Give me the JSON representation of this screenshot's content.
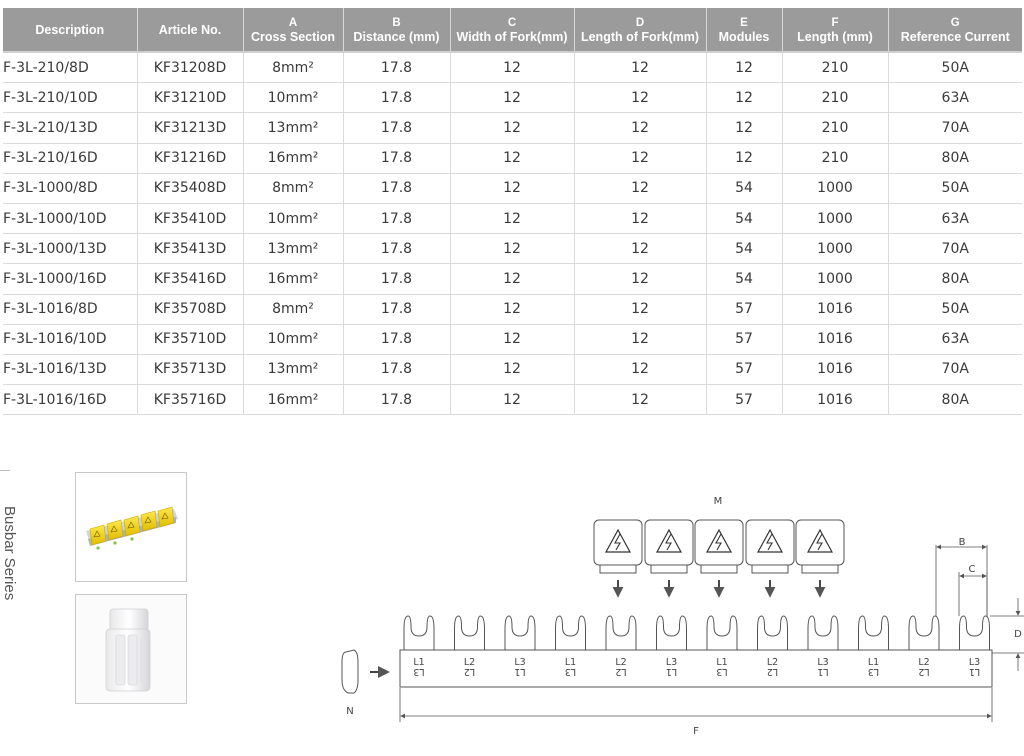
{
  "table": {
    "headers": [
      {
        "letter": "",
        "label": "Description"
      },
      {
        "letter": "",
        "label": "Article No."
      },
      {
        "letter": "A",
        "label": "Cross Section"
      },
      {
        "letter": "B",
        "label": "Distance (mm)"
      },
      {
        "letter": "C",
        "label": "Width of Fork(mm)"
      },
      {
        "letter": "D",
        "label": "Length of Fork(mm)"
      },
      {
        "letter": "E",
        "label": "Modules"
      },
      {
        "letter": "F",
        "label": "Length (mm)"
      },
      {
        "letter": "G",
        "label": "Reference Current"
      }
    ],
    "rows": [
      [
        "F-3L-210/8D",
        "KF31208D",
        "8mm²",
        "17.8",
        "12",
        "12",
        "12",
        "210",
        "50A"
      ],
      [
        "F-3L-210/10D",
        "KF31210D",
        "10mm²",
        "17.8",
        "12",
        "12",
        "12",
        "210",
        "63A"
      ],
      [
        "F-3L-210/13D",
        "KF31213D",
        "13mm²",
        "17.8",
        "12",
        "12",
        "12",
        "210",
        "70A"
      ],
      [
        "F-3L-210/16D",
        "KF31216D",
        "16mm²",
        "17.8",
        "12",
        "12",
        "12",
        "210",
        "80A"
      ],
      [
        "F-3L-1000/8D",
        "KF35408D",
        "8mm²",
        "17.8",
        "12",
        "12",
        "54",
        "1000",
        "50A"
      ],
      [
        "F-3L-1000/10D",
        "KF35410D",
        "10mm²",
        "17.8",
        "12",
        "12",
        "54",
        "1000",
        "63A"
      ],
      [
        "F-3L-1000/13D",
        "KF35413D",
        "13mm²",
        "17.8",
        "12",
        "12",
        "54",
        "1000",
        "70A"
      ],
      [
        "F-3L-1000/16D",
        "KF35416D",
        "16mm²",
        "17.8",
        "12",
        "12",
        "54",
        "1000",
        "80A"
      ],
      [
        "F-3L-1016/8D",
        "KF35708D",
        "8mm²",
        "17.8",
        "12",
        "12",
        "57",
        "1016",
        "50A"
      ],
      [
        "F-3L-1016/10D",
        "KF35710D",
        "10mm²",
        "17.8",
        "12",
        "12",
        "57",
        "1016",
        "63A"
      ],
      [
        "F-3L-1016/13D",
        "KF35713D",
        "13mm²",
        "17.8",
        "12",
        "12",
        "57",
        "1016",
        "70A"
      ],
      [
        "F-3L-1016/16D",
        "KF35716D",
        "16mm²",
        "17.8",
        "12",
        "12",
        "57",
        "1016",
        "80A"
      ]
    ]
  },
  "side_title": "Busbar Series",
  "diagram": {
    "label_m": "M",
    "label_b": "B",
    "label_c": "C",
    "label_d": "D",
    "label_f": "F",
    "label_n": "N",
    "fork_labels_top": [
      "L1",
      "L2",
      "L3",
      "L1",
      "L2",
      "L3",
      "L1",
      "L2",
      "L3",
      "L1",
      "L2",
      "L3"
    ],
    "fork_labels_bottom": [
      "L3",
      "L2",
      "L1",
      "L3",
      "L2",
      "L1",
      "L3",
      "L2",
      "L1",
      "L3",
      "L2",
      "L1"
    ],
    "warning_cap_count": 5
  },
  "colors": {
    "header_bg": "#9b9b9b",
    "cap_yellow": "#f2d100",
    "line": "#555555"
  }
}
